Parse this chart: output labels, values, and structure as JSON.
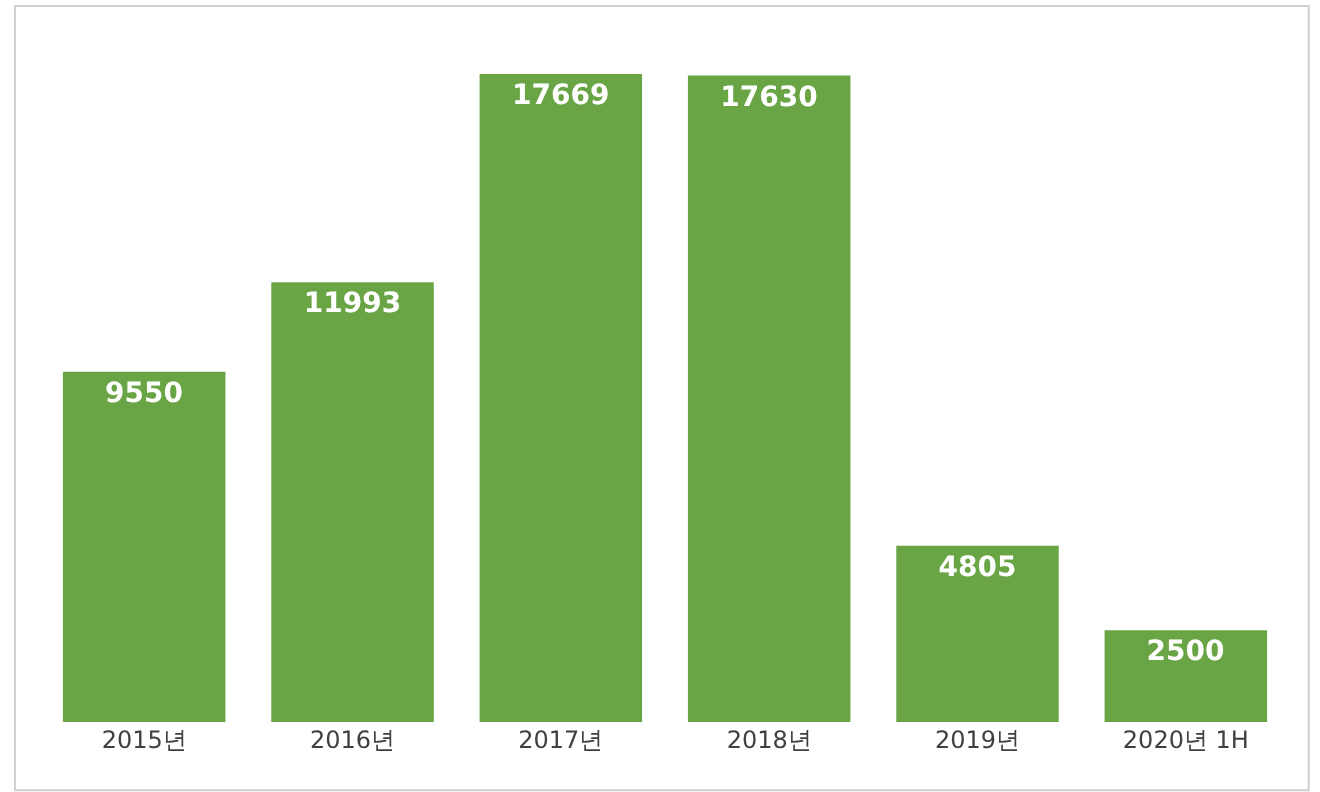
{
  "chart_data": {
    "type": "bar",
    "categories": [
      "2015년",
      "2016년",
      "2017년",
      "2018년",
      "2019년",
      "2020년 1H"
    ],
    "values": [
      9550,
      11993,
      17669,
      17630,
      4805,
      2500
    ],
    "color": "#6aa545",
    "data_labels": true,
    "tick_labels": "x"
  }
}
